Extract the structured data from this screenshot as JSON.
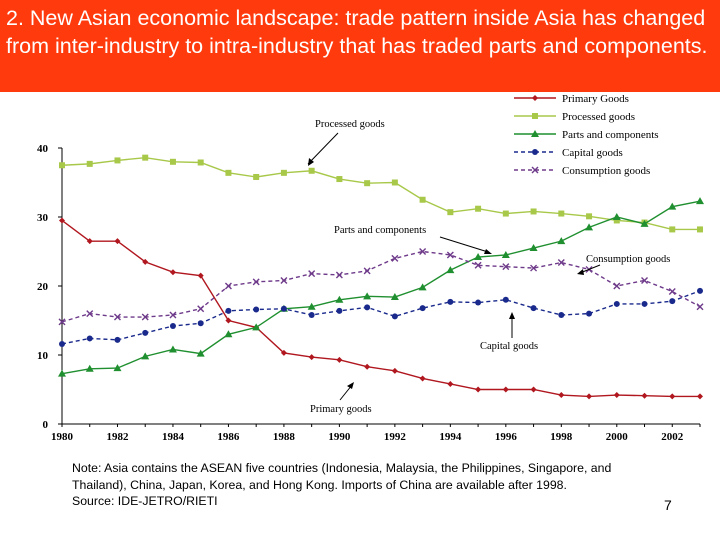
{
  "slide": {
    "title": "2. New Asian economic landscape: trade pattern inside Asia has changed from inter-industry to intra-industry that has traded parts and components.",
    "note": "Note: Asia contains the ASEAN five countries (Indonesia, Malaysia, the Philippines, Singapore, and Thailand), China, Japan, Korea, and Hong Kong. Imports of China are available after 1998.",
    "source": "Source: IDE-JETRO/RIETI",
    "page_number": "7"
  },
  "colors": {
    "banner": "#ff3b0e",
    "primary": "#b0171f",
    "processed": "#a8c84a",
    "parts": "#1f8f2f",
    "capital": "#1a2a8c",
    "consumption": "#6e3a8a"
  },
  "chart_data": {
    "type": "line",
    "title": "",
    "xlabel": "",
    "ylabel": "",
    "x": [
      1980,
      1981,
      1982,
      1983,
      1984,
      1985,
      1986,
      1987,
      1988,
      1989,
      1990,
      1991,
      1992,
      1993,
      1994,
      1995,
      1996,
      1997,
      1998,
      1999,
      2000,
      2001,
      2002,
      2003
    ],
    "xticks": [
      "1980",
      "1982",
      "1984",
      "1986",
      "1988",
      "1990",
      "1992",
      "1994",
      "1996",
      "1998",
      "2000",
      "2002"
    ],
    "xlim": [
      1980,
      2003
    ],
    "yticks": [
      "0",
      "10",
      "20",
      "30",
      "40"
    ],
    "ylim": [
      0,
      40
    ],
    "series": [
      {
        "name": "Primary Goods",
        "values": [
          29.5,
          26.5,
          26.5,
          23.5,
          22.0,
          21.5,
          15.0,
          14.0,
          10.3,
          9.7,
          9.3,
          8.3,
          7.7,
          6.6,
          5.8,
          5.0,
          5.0,
          5.0,
          4.2,
          4.0,
          4.2,
          4.1,
          4.0,
          4.0
        ]
      },
      {
        "name": "Processed goods",
        "values": [
          37.5,
          37.7,
          38.2,
          38.6,
          38.0,
          37.9,
          36.4,
          35.8,
          36.4,
          36.7,
          35.5,
          34.9,
          35.0,
          32.5,
          30.7,
          31.2,
          30.5,
          30.8,
          30.5,
          30.1,
          29.5,
          29.2,
          28.2,
          28.2
        ]
      },
      {
        "name": "Parts and components",
        "values": [
          7.3,
          8.0,
          8.1,
          9.8,
          10.8,
          10.2,
          13.0,
          14.0,
          16.7,
          17.0,
          18.0,
          18.5,
          18.4,
          19.8,
          22.3,
          24.2,
          24.5,
          25.5,
          26.5,
          28.5,
          30.0,
          29.0,
          31.5,
          32.3
        ]
      },
      {
        "name": "Capital goods",
        "values": [
          11.6,
          12.4,
          12.2,
          13.2,
          14.2,
          14.6,
          16.4,
          16.6,
          16.7,
          15.8,
          16.4,
          16.9,
          15.6,
          16.8,
          17.7,
          17.6,
          18.0,
          16.8,
          15.8,
          16.0,
          17.4,
          17.4,
          17.8,
          19.3
        ]
      },
      {
        "name": "Consumption goods",
        "values": [
          14.8,
          16.0,
          15.5,
          15.5,
          15.8,
          16.7,
          20.0,
          20.6,
          20.8,
          21.8,
          21.6,
          22.2,
          24.0,
          25.0,
          24.5,
          23.0,
          22.8,
          22.6,
          23.4,
          22.4,
          20.0,
          20.8,
          19.2,
          17.0
        ]
      }
    ],
    "legend_position": "top-right",
    "annotations": [
      "Processed goods",
      "Parts and components",
      "Consumption goods",
      "Capital goods",
      "Primary goods"
    ]
  }
}
